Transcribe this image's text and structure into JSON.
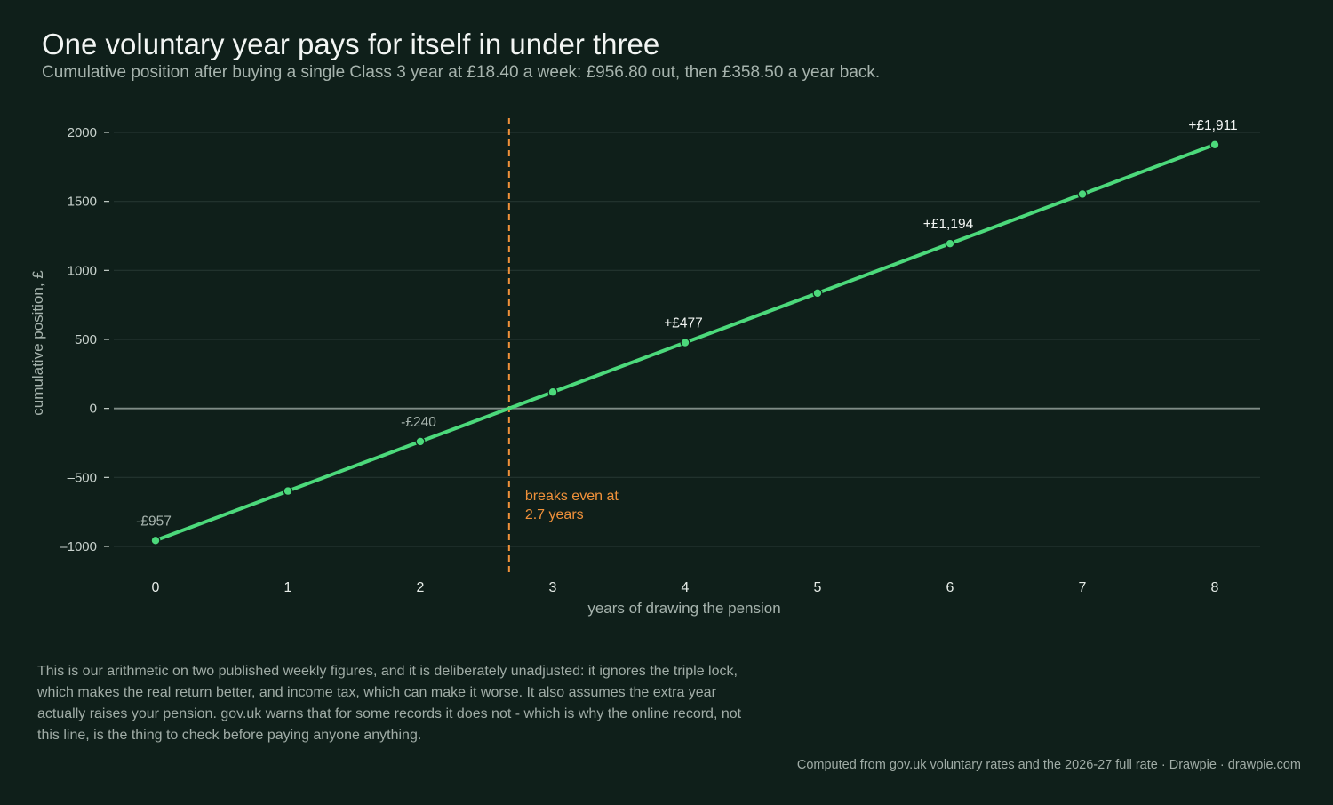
{
  "title": "One voluntary year pays for itself in under three",
  "subtitle": "Cumulative position after buying a single Class 3 year at £18.40 a week: £956.80 out, then £358.50 a year back.",
  "footnote": "This is our arithmetic on two published weekly figures, and it is deliberately unadjusted: it ignores the triple lock, which makes the real return better, and income tax, which can make it worse. It also assumes the extra year actually raises your pension. gov.uk warns that for some records it does not - which is why the online record, not this line, is the thing to check before paying anyone anything.",
  "credit": "Computed from gov.uk voluntary rates and the 2026-27 full rate  ·  Drawpie · drawpie.com",
  "colors": {
    "line": "#4cd97b",
    "breakeven": "#f0913a",
    "grid": "#243530",
    "zero": "#7f8c86"
  },
  "chart_data": {
    "type": "line",
    "xlabel": "years of drawing the pension",
    "ylabel": "cumulative position, £",
    "xlim": [
      0,
      8
    ],
    "ylim": [
      -1200,
      2100
    ],
    "x_ticks": [
      "0",
      "1",
      "2",
      "3",
      "4",
      "5",
      "6",
      "7",
      "8"
    ],
    "y_ticks": [
      {
        "value": 2000,
        "label": "2000"
      },
      {
        "value": 1500,
        "label": "1500"
      },
      {
        "value": 1000,
        "label": "1000"
      },
      {
        "value": 500,
        "label": "500"
      },
      {
        "value": 0,
        "label": "0"
      },
      {
        "value": -500,
        "label": "–500"
      },
      {
        "value": -1000,
        "label": "–1000"
      }
    ],
    "grid": true,
    "x": [
      0,
      1,
      2,
      3,
      4,
      5,
      6,
      7,
      8
    ],
    "y": [
      -956.8,
      -598.3,
      -239.8,
      118.7,
      477.2,
      835.7,
      1194.2,
      1552.7,
      1911.2
    ],
    "point_labels": [
      {
        "x": 0,
        "label": "-£957"
      },
      {
        "x": 2,
        "label": "-£240"
      },
      {
        "x": 4,
        "label": "+£477"
      },
      {
        "x": 6,
        "label": "+£1,194"
      },
      {
        "x": 8,
        "label": "+£1,911"
      }
    ],
    "breakeven": {
      "x": 2.67,
      "label_line1": "breaks even at",
      "label_line2": "2.7 years"
    }
  }
}
